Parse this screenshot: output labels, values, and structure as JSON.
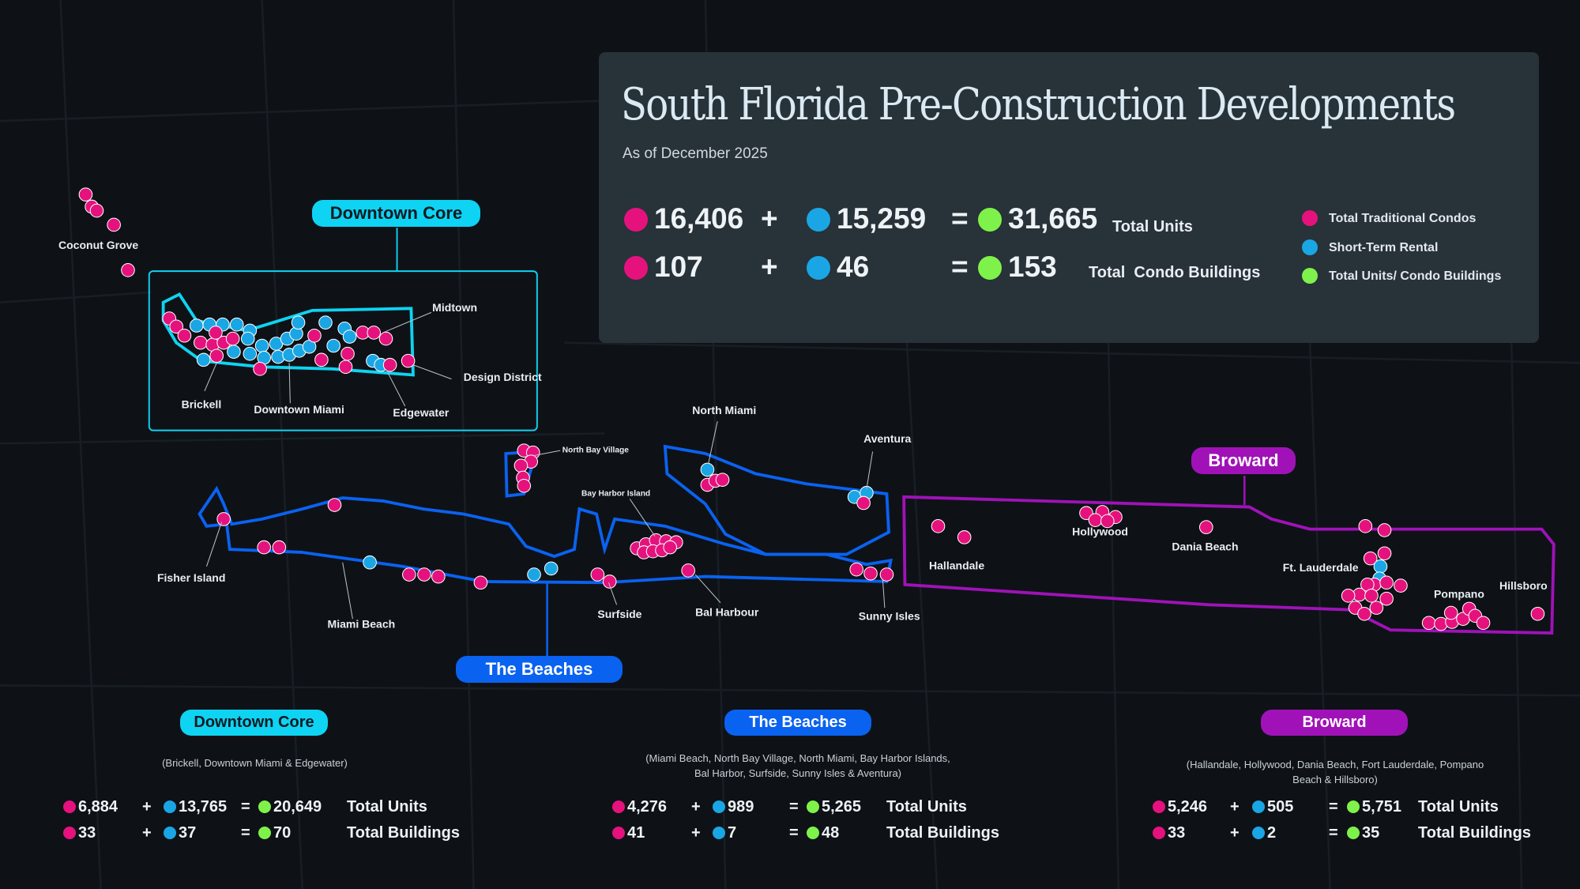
{
  "header": {
    "title": "South Florida Pre-Construction Developments",
    "subtitle": "As of December 2025"
  },
  "totals": {
    "units": {
      "traditional": "16,406",
      "str": "15,259",
      "total": "31,665",
      "label": "Total Units"
    },
    "buildings": {
      "traditional": "107",
      "str": "46",
      "total": "153",
      "label": "Total  Condo Buildings"
    },
    "plus": "+",
    "equals": "="
  },
  "legend": [
    {
      "label": "Total Traditional Condos",
      "color": "#e5127d"
    },
    {
      "label": "Short-Term Rental",
      "color": "#1aa6e4"
    },
    {
      "label": "Total Units/ Condo Buildings",
      "color": "#7ef24a"
    }
  ],
  "colors": {
    "traditional": "#e5127d",
    "str": "#1aa6e4",
    "total": "#7ef24a",
    "downtown": "#0fd3f2",
    "beaches": "#0a62f0",
    "broward": "#a012b8"
  },
  "map": {
    "region_labels": {
      "downtown": "Downtown Core",
      "beaches": "The Beaches",
      "broward": "Broward"
    },
    "places": [
      "Coconut Grove",
      "Midtown",
      "Design District",
      "Brickell",
      "Downtown Miami",
      "Edgewater",
      "North Bay Village",
      "Bay Harbor Island",
      "North Miami",
      "Aventura",
      "Fisher Island",
      "Miami Beach",
      "Surfside",
      "Bal Harbour",
      "Sunny Isles",
      "Hallandale",
      "Hollywood",
      "Dania Beach",
      "Ft. Lauderdale",
      "Pompano",
      "Hillsboro"
    ]
  },
  "regions": [
    {
      "name": "Downtown Core",
      "description": "(Brickell, Downtown Miami & Edgewater)",
      "units": {
        "traditional": "6,884",
        "str": "13,765",
        "total": "20,649",
        "label": "Total Units"
      },
      "buildings": {
        "traditional": "33",
        "str": "37",
        "total": "70",
        "label": "Total Buildings"
      }
    },
    {
      "name": "The Beaches",
      "description": "(Miami Beach, North Bay Village, North Miami, Bay Harbor Islands, Bal Harbor, Surfside, Sunny Isles & Aventura)",
      "units": {
        "traditional": "4,276",
        "str": "989",
        "total": "5,265",
        "label": "Total Units"
      },
      "buildings": {
        "traditional": "41",
        "str": "7",
        "total": "48",
        "label": "Total Buildings"
      }
    },
    {
      "name": "Broward",
      "description": "(Hallandale, Hollywood, Dania Beach,  Fort Lauderdale, Pompano Beach & Hillsboro)",
      "units": {
        "traditional": "5,246",
        "str": "505",
        "total": "5,751",
        "label": "Total Units"
      },
      "buildings": {
        "traditional": "33",
        "str": "2",
        "total": "35",
        "label": "Total Buildings"
      }
    }
  ]
}
